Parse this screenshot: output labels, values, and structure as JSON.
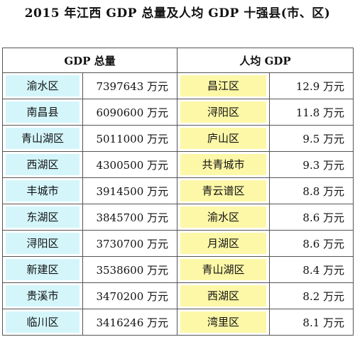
{
  "title": "2015 年江西 GDP 总量及人均 GDP 十强县(市、区)",
  "table": {
    "header": [
      "GDP 总量",
      "人均 GDP"
    ],
    "rows": [
      [
        "渝水区",
        "7397643 万元",
        "昌江区",
        "12.9 万元"
      ],
      [
        "南昌县",
        "6090600 万元",
        "浔阳区",
        "11.8 万元"
      ],
      [
        "青山湖区",
        "5011000 万元",
        "庐山区",
        "9.5 万元"
      ],
      [
        "西湖区",
        "4300500 万元",
        "共青城市",
        "9.3 万元"
      ],
      [
        "丰城市",
        "3914500 万元",
        "青云谱区",
        "8.8 万元"
      ],
      [
        "东湖区",
        "3845700 万元",
        "渝水区",
        "8.6 万元"
      ],
      [
        "浔阳区",
        "3730700 万元",
        "月湖区",
        "8.6 万元"
      ],
      [
        "新建区",
        "3538600 万元",
        "青山湖区",
        "8.4 万元"
      ],
      [
        "贵溪市",
        "3470200 万元",
        "西湖区",
        "8.2 万元"
      ],
      [
        "临川区",
        "3416246 万元",
        "湾里区",
        "8.1 万元"
      ]
    ]
  }
}
